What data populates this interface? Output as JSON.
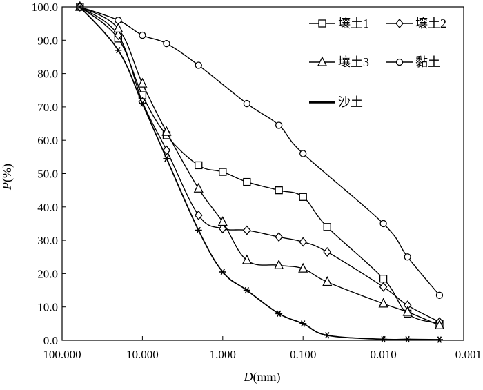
{
  "chart_data": {
    "type": "line",
    "xlabel_italic": "D",
    "xlabel_unit": "(mm)",
    "ylabel_italic": "P",
    "ylabel_unit": "(%)",
    "x_scale": "log-reversed",
    "xlim": [
      100,
      0.001
    ],
    "ylim": [
      0,
      100
    ],
    "x_ticks": [
      {
        "value": 100,
        "label": "100.000"
      },
      {
        "value": 10,
        "label": "10.000"
      },
      {
        "value": 1,
        "label": "1.000"
      },
      {
        "value": 0.1,
        "label": "0.100"
      },
      {
        "value": 0.01,
        "label": "0.010"
      },
      {
        "value": 0.001,
        "label": "0.001"
      }
    ],
    "y_ticks": [
      {
        "value": 0,
        "label": "0.0"
      },
      {
        "value": 10,
        "label": "10.0"
      },
      {
        "value": 20,
        "label": "20.0"
      },
      {
        "value": 30,
        "label": "30.0"
      },
      {
        "value": 40,
        "label": "40.0"
      },
      {
        "value": 50,
        "label": "50.0"
      },
      {
        "value": 60,
        "label": "60.0"
      },
      {
        "value": 70,
        "label": "70.0"
      },
      {
        "value": 80,
        "label": "80.0"
      },
      {
        "value": 90,
        "label": "90.0"
      },
      {
        "value": 100,
        "label": "100.0"
      }
    ],
    "grid": false,
    "legend_position": "top-right",
    "series": [
      {
        "name": "壤土1",
        "marker": "square",
        "points": [
          {
            "x": 60,
            "y": 100
          },
          {
            "x": 20,
            "y": 90.5
          },
          {
            "x": 10,
            "y": 73.5
          },
          {
            "x": 5,
            "y": 61.5
          },
          {
            "x": 2,
            "y": 52.5
          },
          {
            "x": 1,
            "y": 50.5
          },
          {
            "x": 0.5,
            "y": 47.5
          },
          {
            "x": 0.2,
            "y": 45
          },
          {
            "x": 0.1,
            "y": 43
          },
          {
            "x": 0.05,
            "y": 34
          },
          {
            "x": 0.01,
            "y": 18.5
          },
          {
            "x": 0.005,
            "y": 8
          },
          {
            "x": 0.002,
            "y": 5
          }
        ]
      },
      {
        "name": "壤土2",
        "marker": "diamond",
        "points": [
          {
            "x": 60,
            "y": 100
          },
          {
            "x": 20,
            "y": 91.5
          },
          {
            "x": 10,
            "y": 71.5
          },
          {
            "x": 5,
            "y": 57
          },
          {
            "x": 2,
            "y": 37.5
          },
          {
            "x": 1,
            "y": 33.5
          },
          {
            "x": 0.5,
            "y": 33
          },
          {
            "x": 0.2,
            "y": 31
          },
          {
            "x": 0.1,
            "y": 29.5
          },
          {
            "x": 0.05,
            "y": 26.5
          },
          {
            "x": 0.01,
            "y": 16
          },
          {
            "x": 0.005,
            "y": 10.5
          },
          {
            "x": 0.002,
            "y": 5.5
          }
        ]
      },
      {
        "name": "壤土3",
        "marker": "triangle",
        "points": [
          {
            "x": 60,
            "y": 100
          },
          {
            "x": 20,
            "y": 93.5
          },
          {
            "x": 10,
            "y": 77
          },
          {
            "x": 5,
            "y": 62.5
          },
          {
            "x": 2,
            "y": 45.5
          },
          {
            "x": 1,
            "y": 35.5
          },
          {
            "x": 0.5,
            "y": 24
          },
          {
            "x": 0.2,
            "y": 22.5
          },
          {
            "x": 0.1,
            "y": 21.5
          },
          {
            "x": 0.05,
            "y": 17.5
          },
          {
            "x": 0.01,
            "y": 11
          },
          {
            "x": 0.005,
            "y": 8.5
          },
          {
            "x": 0.002,
            "y": 4.5
          }
        ]
      },
      {
        "name": "黏土",
        "marker": "circle",
        "points": [
          {
            "x": 60,
            "y": 100
          },
          {
            "x": 20,
            "y": 96
          },
          {
            "x": 10,
            "y": 91.5
          },
          {
            "x": 5,
            "y": 89
          },
          {
            "x": 2,
            "y": 82.5
          },
          {
            "x": 0.5,
            "y": 71
          },
          {
            "x": 0.2,
            "y": 64.5
          },
          {
            "x": 0.1,
            "y": 56
          },
          {
            "x": 0.01,
            "y": 35
          },
          {
            "x": 0.005,
            "y": 25
          },
          {
            "x": 0.002,
            "y": 13.5
          }
        ]
      },
      {
        "name": "沙土",
        "marker": "asterisk",
        "points": [
          {
            "x": 60,
            "y": 100
          },
          {
            "x": 20,
            "y": 87
          },
          {
            "x": 10,
            "y": 71
          },
          {
            "x": 5,
            "y": 54.5
          },
          {
            "x": 2,
            "y": 33
          },
          {
            "x": 1,
            "y": 20.5
          },
          {
            "x": 0.5,
            "y": 15
          },
          {
            "x": 0.2,
            "y": 8
          },
          {
            "x": 0.1,
            "y": 5
          },
          {
            "x": 0.05,
            "y": 1.5
          },
          {
            "x": 0.01,
            "y": 0.3
          },
          {
            "x": 0.005,
            "y": 0.3
          },
          {
            "x": 0.002,
            "y": 0.2
          }
        ]
      }
    ]
  }
}
